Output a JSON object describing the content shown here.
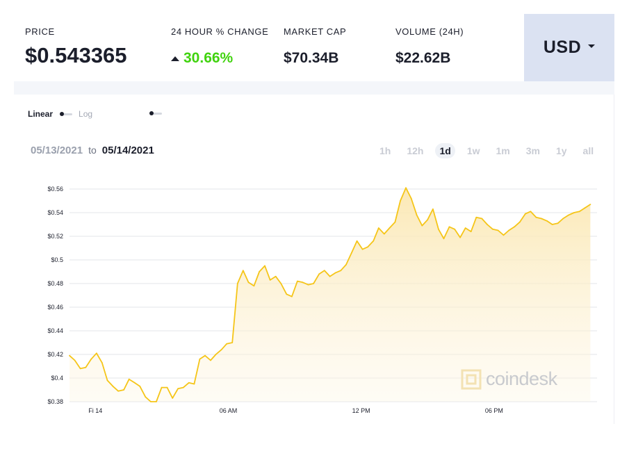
{
  "stats": {
    "price_label": "PRICE",
    "price_value": "$0.543365",
    "change_label": "24 HOUR % CHANGE",
    "change_value": "30.66%",
    "change_direction": "up",
    "market_cap_label": "MARKET CAP",
    "market_cap_value": "$70.34B",
    "volume_label": "VOLUME (24H)",
    "volume_value": "$22.62B"
  },
  "currency": {
    "selected": "USD",
    "icon": "chevron-down-icon"
  },
  "scale": {
    "linear_label": "Linear",
    "log_label": "Log",
    "selected": "Linear"
  },
  "date_range": {
    "from": "05/13/2021",
    "to_word": "to",
    "to": "05/14/2021"
  },
  "time_ranges": [
    "1h",
    "12h",
    "1d",
    "1w",
    "1m",
    "3m",
    "1y",
    "all"
  ],
  "time_range_selected": "1d",
  "watermark": "coindesk",
  "colors": {
    "accent": "#f5c518",
    "change_up": "#41d30f",
    "currency_bg": "#dbe2f2"
  },
  "chart_data": {
    "type": "area",
    "title": "",
    "xlabel": "",
    "ylabel": "",
    "ylim": [
      0.38,
      0.56
    ],
    "yticks": [
      "$0.56",
      "$0.54",
      "$0.52",
      "$0.5",
      "$0.48",
      "$0.46",
      "$0.44",
      "$0.42",
      "$0.4",
      "$0.38"
    ],
    "ytick_values": [
      0.56,
      0.54,
      0.52,
      0.5,
      0.48,
      0.46,
      0.44,
      0.42,
      0.4,
      0.38
    ],
    "xlim_hours": [
      -1.17,
      22.65
    ],
    "xticks": [
      {
        "label": "Fi 14",
        "hour": 0
      },
      {
        "label": "06 AM",
        "hour": 6
      },
      {
        "label": "12 PM",
        "hour": 12
      },
      {
        "label": "06 PM",
        "hour": 18
      }
    ],
    "grid": true,
    "series": [
      {
        "values": [
          [
            -1.17,
            0.419
          ],
          [
            -0.93,
            0.415
          ],
          [
            -0.68,
            0.408
          ],
          [
            -0.44,
            0.409
          ],
          [
            -0.19,
            0.416
          ],
          [
            0.05,
            0.421
          ],
          [
            0.3,
            0.413
          ],
          [
            0.54,
            0.398
          ],
          [
            0.79,
            0.393
          ],
          [
            1.03,
            0.389
          ],
          [
            1.28,
            0.39
          ],
          [
            1.52,
            0.399
          ],
          [
            1.77,
            0.396
          ],
          [
            2.01,
            0.393
          ],
          [
            2.26,
            0.384
          ],
          [
            2.5,
            0.38
          ],
          [
            2.75,
            0.38
          ],
          [
            2.99,
            0.392
          ],
          [
            3.24,
            0.392
          ],
          [
            3.48,
            0.383
          ],
          [
            3.73,
            0.391
          ],
          [
            3.97,
            0.392
          ],
          [
            4.22,
            0.396
          ],
          [
            4.46,
            0.395
          ],
          [
            4.71,
            0.416
          ],
          [
            4.95,
            0.419
          ],
          [
            5.2,
            0.415
          ],
          [
            5.44,
            0.42
          ],
          [
            5.69,
            0.424
          ],
          [
            5.93,
            0.429
          ],
          [
            6.18,
            0.43
          ],
          [
            6.42,
            0.48
          ],
          [
            6.67,
            0.491
          ],
          [
            6.91,
            0.481
          ],
          [
            7.16,
            0.478
          ],
          [
            7.4,
            0.49
          ],
          [
            7.65,
            0.495
          ],
          [
            7.89,
            0.483
          ],
          [
            8.14,
            0.486
          ],
          [
            8.38,
            0.48
          ],
          [
            8.63,
            0.471
          ],
          [
            8.87,
            0.469
          ],
          [
            9.12,
            0.482
          ],
          [
            9.36,
            0.481
          ],
          [
            9.61,
            0.479
          ],
          [
            9.85,
            0.48
          ],
          [
            10.1,
            0.488
          ],
          [
            10.34,
            0.491
          ],
          [
            10.59,
            0.486
          ],
          [
            10.83,
            0.489
          ],
          [
            11.08,
            0.491
          ],
          [
            11.32,
            0.496
          ],
          [
            11.57,
            0.506
          ],
          [
            11.81,
            0.516
          ],
          [
            12.06,
            0.509
          ],
          [
            12.3,
            0.511
          ],
          [
            12.55,
            0.516
          ],
          [
            12.79,
            0.527
          ],
          [
            13.04,
            0.522
          ],
          [
            13.28,
            0.527
          ],
          [
            13.53,
            0.532
          ],
          [
            13.77,
            0.55
          ],
          [
            14.02,
            0.561
          ],
          [
            14.26,
            0.552
          ],
          [
            14.51,
            0.538
          ],
          [
            14.75,
            0.529
          ],
          [
            15.0,
            0.534
          ],
          [
            15.24,
            0.543
          ],
          [
            15.49,
            0.526
          ],
          [
            15.73,
            0.518
          ],
          [
            15.98,
            0.528
          ],
          [
            16.22,
            0.526
          ],
          [
            16.47,
            0.519
          ],
          [
            16.71,
            0.527
          ],
          [
            16.96,
            0.524
          ],
          [
            17.2,
            0.536
          ],
          [
            17.45,
            0.535
          ],
          [
            17.69,
            0.53
          ],
          [
            17.94,
            0.526
          ],
          [
            18.18,
            0.525
          ],
          [
            18.43,
            0.521
          ],
          [
            18.67,
            0.525
          ],
          [
            18.92,
            0.528
          ],
          [
            19.16,
            0.532
          ],
          [
            19.41,
            0.539
          ],
          [
            19.65,
            0.541
          ],
          [
            19.9,
            0.536
          ],
          [
            20.14,
            0.535
          ],
          [
            20.39,
            0.533
          ],
          [
            20.63,
            0.53
          ],
          [
            20.88,
            0.531
          ],
          [
            21.12,
            0.535
          ],
          [
            21.37,
            0.538
          ],
          [
            21.61,
            0.54
          ],
          [
            21.86,
            0.541
          ],
          [
            22.1,
            0.544
          ],
          [
            22.35,
            0.547
          ]
        ]
      }
    ]
  }
}
